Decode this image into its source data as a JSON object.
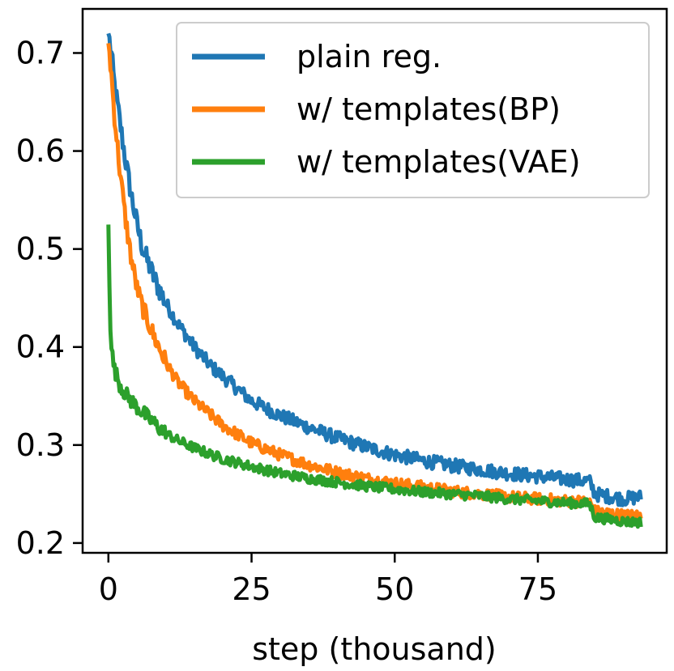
{
  "chart_data": {
    "type": "line",
    "title": "",
    "xlabel": "step (thousand)",
    "ylabel": "",
    "xlim": [
      -4.5,
      97.5
    ],
    "ylim": [
      0.19,
      0.745
    ],
    "xticks": [
      0,
      25,
      50,
      75
    ],
    "xtick_labels": [
      "0",
      "25",
      "50",
      "75"
    ],
    "yticks": [
      0.2,
      0.3,
      0.4,
      0.5,
      0.6,
      0.7
    ],
    "ytick_labels": [
      "0.2",
      "0.3",
      "0.4",
      "0.5",
      "0.6",
      "0.7"
    ],
    "grid": false,
    "legend_position": "top-right",
    "series": [
      {
        "name": "plain reg.",
        "color": "#1f77b4",
        "noise": 0.007,
        "x": [
          0,
          0.5,
          1,
          2,
          3,
          4,
          5,
          6,
          8,
          10,
          12,
          15,
          18,
          20,
          25,
          30,
          35,
          40,
          45,
          50,
          55,
          60,
          65,
          70,
          75,
          80,
          84,
          85,
          88,
          90,
          93
        ],
        "y": [
          0.72,
          0.7,
          0.67,
          0.63,
          0.59,
          0.555,
          0.525,
          0.5,
          0.47,
          0.445,
          0.425,
          0.4,
          0.38,
          0.37,
          0.345,
          0.33,
          0.318,
          0.307,
          0.298,
          0.29,
          0.284,
          0.279,
          0.275,
          0.271,
          0.268,
          0.265,
          0.263,
          0.25,
          0.247,
          0.245,
          0.247
        ]
      },
      {
        "name": "w/ templates(BP)",
        "color": "#ff7f0e",
        "noise": 0.006,
        "x": [
          0,
          0.5,
          1,
          2,
          3,
          4,
          5,
          6,
          8,
          10,
          12,
          15,
          18,
          20,
          25,
          30,
          35,
          40,
          45,
          50,
          55,
          60,
          65,
          70,
          75,
          80,
          84,
          85,
          88,
          90,
          93
        ],
        "y": [
          0.71,
          0.68,
          0.64,
          0.58,
          0.53,
          0.49,
          0.46,
          0.44,
          0.41,
          0.385,
          0.365,
          0.345,
          0.33,
          0.32,
          0.302,
          0.29,
          0.28,
          0.272,
          0.266,
          0.261,
          0.257,
          0.253,
          0.25,
          0.247,
          0.245,
          0.243,
          0.242,
          0.232,
          0.23,
          0.228,
          0.228
        ]
      },
      {
        "name": "w/ templates(VAE)",
        "color": "#2ca02c",
        "noise": 0.005,
        "x": [
          0,
          0.3,
          0.6,
          1,
          2,
          3,
          4,
          6,
          8,
          10,
          12,
          15,
          18,
          20,
          25,
          30,
          35,
          40,
          45,
          50,
          55,
          60,
          65,
          70,
          75,
          80,
          84,
          85,
          88,
          90,
          93
        ],
        "y": [
          0.525,
          0.43,
          0.395,
          0.378,
          0.362,
          0.352,
          0.345,
          0.333,
          0.322,
          0.312,
          0.305,
          0.297,
          0.29,
          0.286,
          0.278,
          0.271,
          0.266,
          0.262,
          0.258,
          0.255,
          0.252,
          0.25,
          0.248,
          0.245,
          0.243,
          0.241,
          0.24,
          0.226,
          0.224,
          0.222,
          0.221
        ]
      }
    ]
  }
}
